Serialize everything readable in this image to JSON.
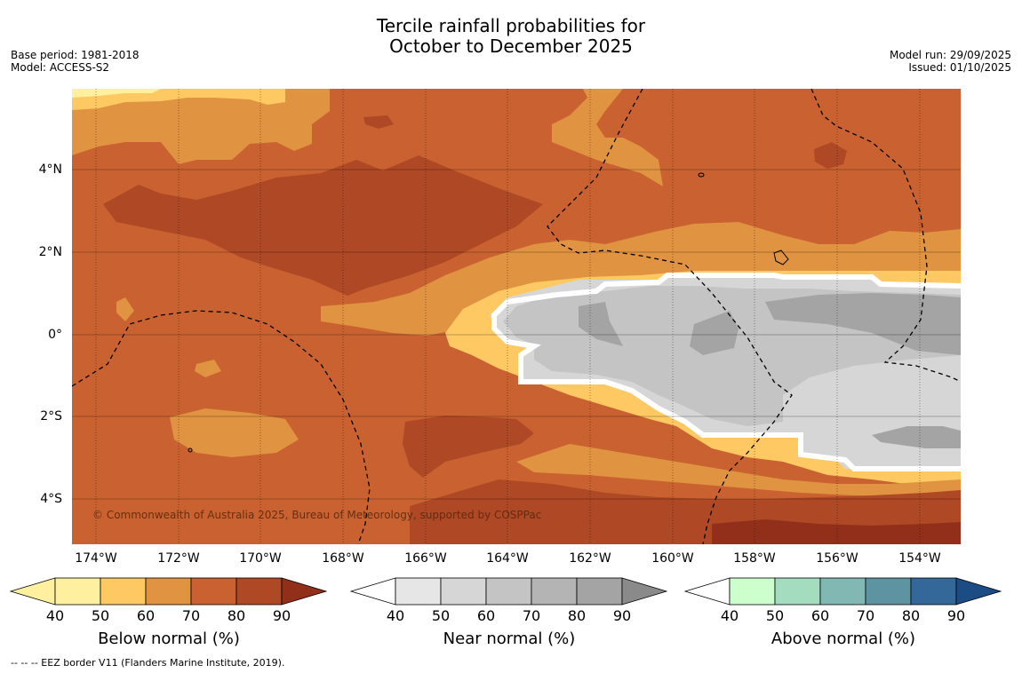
{
  "header": {
    "title_line1": "Tercile rainfall probabilities for",
    "title_line2": "October to December 2025",
    "base_period": "Base period: 1981-2018",
    "model": "Model: ACCESS-S2",
    "model_run": "Model run: 29/09/2025",
    "issued": "Issued: 01/10/2025"
  },
  "map": {
    "copyright": "© Commonwealth of Australia 2025, Bureau of Meteorology, supported by COSPPac",
    "lat_ticks": [
      "4°N",
      "2°N",
      "0°",
      "2°S",
      "4°S"
    ],
    "lon_ticks": [
      "174°W",
      "172°W",
      "170°W",
      "168°W",
      "166°W",
      "164°W",
      "162°W",
      "160°W",
      "158°W",
      "156°W",
      "154°W"
    ]
  },
  "colorbars": [
    {
      "label": "Below normal (%)",
      "colors": [
        "#fff0a0",
        "#fec962",
        "#e09340",
        "#c96230",
        "#ae4825",
        "#922f1b"
      ]
    },
    {
      "label": "Near normal (%)",
      "colors": [
        "#e6e6e6",
        "#d6d6d6",
        "#c4c4c4",
        "#b4b4b4",
        "#a4a4a4",
        "#8a8a8a"
      ]
    },
    {
      "label": "Above normal (%)",
      "colors": [
        "#ccffcc",
        "#a4dcc0",
        "#82b8b4",
        "#5e94a2",
        "#346898",
        "#1c4c84"
      ]
    }
  ],
  "colorbar_ticks": [
    "40",
    "50",
    "60",
    "70",
    "80",
    "90"
  ],
  "footnote": "--  --  -- EEZ border V11 (Flanders Marine Institute, 2019)."
}
